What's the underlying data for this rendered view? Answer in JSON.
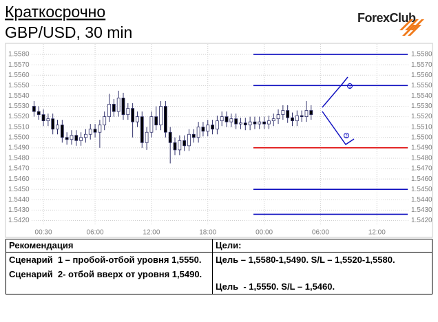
{
  "header": {
    "title": "Краткосрочно",
    "subtitle": "GBP/USD, 30 min",
    "logo": "ForexClub"
  },
  "chart_data": {
    "type": "candlestick",
    "candles": {
      "open": [
        1.553,
        1.5525,
        1.5522,
        1.5516,
        1.5518,
        1.5508,
        1.5512,
        1.55,
        1.5498,
        1.5502,
        1.5497,
        1.55,
        1.5503,
        1.5508,
        1.5505,
        1.5512,
        1.552,
        1.5532,
        1.5525,
        1.5538,
        1.5522,
        1.5528,
        1.5515,
        1.552,
        1.5495,
        1.5505,
        1.552,
        1.5512,
        1.553,
        1.5505,
        1.5495,
        1.5488,
        1.5497,
        1.5492,
        1.5503,
        1.55,
        1.551,
        1.5506,
        1.5512,
        1.5508,
        1.5516,
        1.552,
        1.5515,
        1.5518,
        1.5513,
        1.5514,
        1.5512,
        1.5515,
        1.5513,
        1.5515,
        1.5513,
        1.5516,
        1.5518,
        1.5522,
        1.5526,
        1.5519,
        1.5516,
        1.5521,
        1.552,
        1.5526
      ],
      "high": [
        1.5535,
        1.553,
        1.5527,
        1.5523,
        1.5523,
        1.5517,
        1.5517,
        1.5505,
        1.5507,
        1.5507,
        1.5505,
        1.5508,
        1.5513,
        1.5513,
        1.5517,
        1.5525,
        1.5542,
        1.5537,
        1.5545,
        1.5543,
        1.5533,
        1.5533,
        1.5525,
        1.5525,
        1.551,
        1.5525,
        1.553,
        1.5535,
        1.5535,
        1.551,
        1.55,
        1.5502,
        1.5502,
        1.5508,
        1.5508,
        1.5515,
        1.5515,
        1.5517,
        1.5517,
        1.5521,
        1.5525,
        1.5525,
        1.5523,
        1.5523,
        1.5519,
        1.5519,
        1.552,
        1.552,
        1.552,
        1.552,
        1.5521,
        1.5523,
        1.5527,
        1.5531,
        1.5531,
        1.5524,
        1.5526,
        1.5526,
        1.5535,
        1.5531
      ],
      "low": [
        1.552,
        1.5517,
        1.5511,
        1.5511,
        1.5503,
        1.5503,
        1.5495,
        1.5493,
        1.5493,
        1.5492,
        1.5492,
        1.5495,
        1.5498,
        1.55,
        1.549,
        1.5507,
        1.5515,
        1.552,
        1.552,
        1.5517,
        1.5517,
        1.55,
        1.551,
        1.549,
        1.5488,
        1.55,
        1.5507,
        1.5507,
        1.55,
        1.5475,
        1.5483,
        1.5483,
        1.5487,
        1.5487,
        1.5495,
        1.5495,
        1.5501,
        1.5501,
        1.5503,
        1.5503,
        1.5511,
        1.551,
        1.551,
        1.5508,
        1.5508,
        1.5507,
        1.5507,
        1.5508,
        1.5508,
        1.5508,
        1.5508,
        1.5511,
        1.5513,
        1.5517,
        1.5514,
        1.5511,
        1.5511,
        1.5515,
        1.5515,
        1.5517
      ],
      "close": [
        1.5525,
        1.5522,
        1.5516,
        1.5518,
        1.5508,
        1.5512,
        1.55,
        1.5498,
        1.5502,
        1.5497,
        1.55,
        1.5503,
        1.5508,
        1.5505,
        1.5512,
        1.552,
        1.5532,
        1.5525,
        1.5538,
        1.5522,
        1.5528,
        1.5515,
        1.552,
        1.5495,
        1.5505,
        1.552,
        1.5512,
        1.553,
        1.5505,
        1.5495,
        1.5488,
        1.5497,
        1.5492,
        1.5503,
        1.55,
        1.551,
        1.5506,
        1.5512,
        1.5508,
        1.5516,
        1.552,
        1.5515,
        1.5518,
        1.5513,
        1.5514,
        1.5512,
        1.5515,
        1.5513,
        1.5515,
        1.5513,
        1.5516,
        1.5518,
        1.5522,
        1.5526,
        1.5519,
        1.5516,
        1.5521,
        1.552,
        1.5526,
        1.5522
      ]
    },
    "up_color": "#ffffff",
    "down_color": "#000000",
    "wick_color": "#30306a",
    "xlim": [
      -0.5,
      80
    ],
    "xticks": [
      {
        "value": 2,
        "label": "00:30"
      },
      {
        "value": 13,
        "label": "06:00"
      },
      {
        "value": 25,
        "label": "12:00"
      },
      {
        "value": 37,
        "label": "18:00"
      },
      {
        "value": 49,
        "label": "00:00"
      },
      {
        "value": 61,
        "label": "06:00"
      },
      {
        "value": 73,
        "label": "12:00"
      }
    ],
    "ylim": [
      1.5415,
      1.559
    ],
    "yticks": [
      {
        "value": 1.542,
        "label": "1.5420"
      },
      {
        "value": 1.543,
        "label": "1.5430"
      },
      {
        "value": 1.544,
        "label": "1.5440"
      },
      {
        "value": 1.545,
        "label": "1.5450"
      },
      {
        "value": 1.546,
        "label": "1.5460"
      },
      {
        "value": 1.547,
        "label": "1.5470"
      },
      {
        "value": 1.548,
        "label": "1.5480"
      },
      {
        "value": 1.549,
        "label": "1.5490"
      },
      {
        "value": 1.55,
        "label": "1.5500"
      },
      {
        "value": 1.551,
        "label": "1.5510"
      },
      {
        "value": 1.552,
        "label": "1.5520"
      },
      {
        "value": 1.553,
        "label": "1.5530"
      },
      {
        "value": 1.554,
        "label": "1.5540"
      },
      {
        "value": 1.555,
        "label": "1.5550"
      },
      {
        "value": 1.556,
        "label": "1.5560"
      },
      {
        "value": 1.557,
        "label": "1.5570"
      },
      {
        "value": 1.558,
        "label": "1.5580"
      }
    ],
    "grid": true,
    "levels": [
      {
        "value": 1.558,
        "color": "#1010c0"
      },
      {
        "value": 1.555,
        "color": "#1010c0"
      },
      {
        "value": 1.549,
        "color": "#e01010"
      },
      {
        "value": 1.545,
        "color": "#1010c0"
      },
      {
        "value": 1.5426,
        "color": "#1010c0"
      }
    ],
    "annotations": [
      "1",
      "2"
    ]
  },
  "table": {
    "headers": [
      "Рекомендация",
      "Цели:"
    ],
    "rows": [
      [
        "Сценарий  1 – пробой-отбой уровня 1,5550.",
        "Цель – 1,5580-1,5490. S/L – 1,5520-1,5580."
      ],
      [
        "Сценарий  2- отбой вверх от уровня 1,5490.",
        "\nЦель  - 1,5550. S/L – 1,5460."
      ]
    ]
  }
}
